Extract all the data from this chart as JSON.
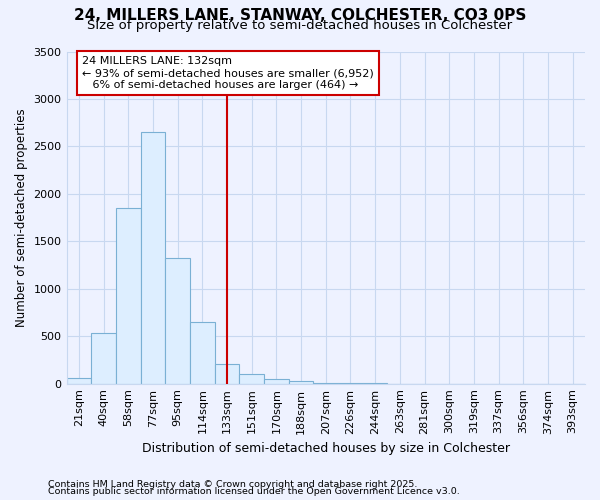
{
  "title1": "24, MILLERS LANE, STANWAY, COLCHESTER, CO3 0PS",
  "title2": "Size of property relative to semi-detached houses in Colchester",
  "xlabel": "Distribution of semi-detached houses by size in Colchester",
  "ylabel": "Number of semi-detached properties",
  "footnote1": "Contains HM Land Registry data © Crown copyright and database right 2025.",
  "footnote2": "Contains public sector information licensed under the Open Government Licence v3.0.",
  "categories": [
    "21sqm",
    "40sqm",
    "58sqm",
    "77sqm",
    "95sqm",
    "114sqm",
    "133sqm",
    "151sqm",
    "170sqm",
    "188sqm",
    "207sqm",
    "226sqm",
    "244sqm",
    "263sqm",
    "281sqm",
    "300sqm",
    "319sqm",
    "337sqm",
    "356sqm",
    "374sqm",
    "393sqm"
  ],
  "values": [
    60,
    530,
    1850,
    2650,
    1320,
    650,
    210,
    105,
    50,
    25,
    10,
    5,
    2,
    1,
    0,
    0,
    0,
    0,
    0,
    0,
    0
  ],
  "bar_color_fill": "#ddeeff",
  "bar_color_edge": "#7ab0d4",
  "vline_index": 6,
  "vline_color": "#cc0000",
  "annotation_box_line1": "24 MILLERS LANE: 132sqm",
  "annotation_box_line2": "← 93% of semi-detached houses are smaller (6,952)",
  "annotation_box_line3": "   6% of semi-detached houses are larger (464) →",
  "ylim": [
    0,
    3500
  ],
  "yticks": [
    0,
    500,
    1000,
    1500,
    2000,
    2500,
    3000,
    3500
  ],
  "background_color": "#eef2ff",
  "grid_color": "#c8d8f0",
  "title1_fontsize": 11,
  "title2_fontsize": 9.5,
  "xlabel_fontsize": 9,
  "ylabel_fontsize": 8.5,
  "tick_fontsize": 8,
  "footnote_fontsize": 6.8
}
